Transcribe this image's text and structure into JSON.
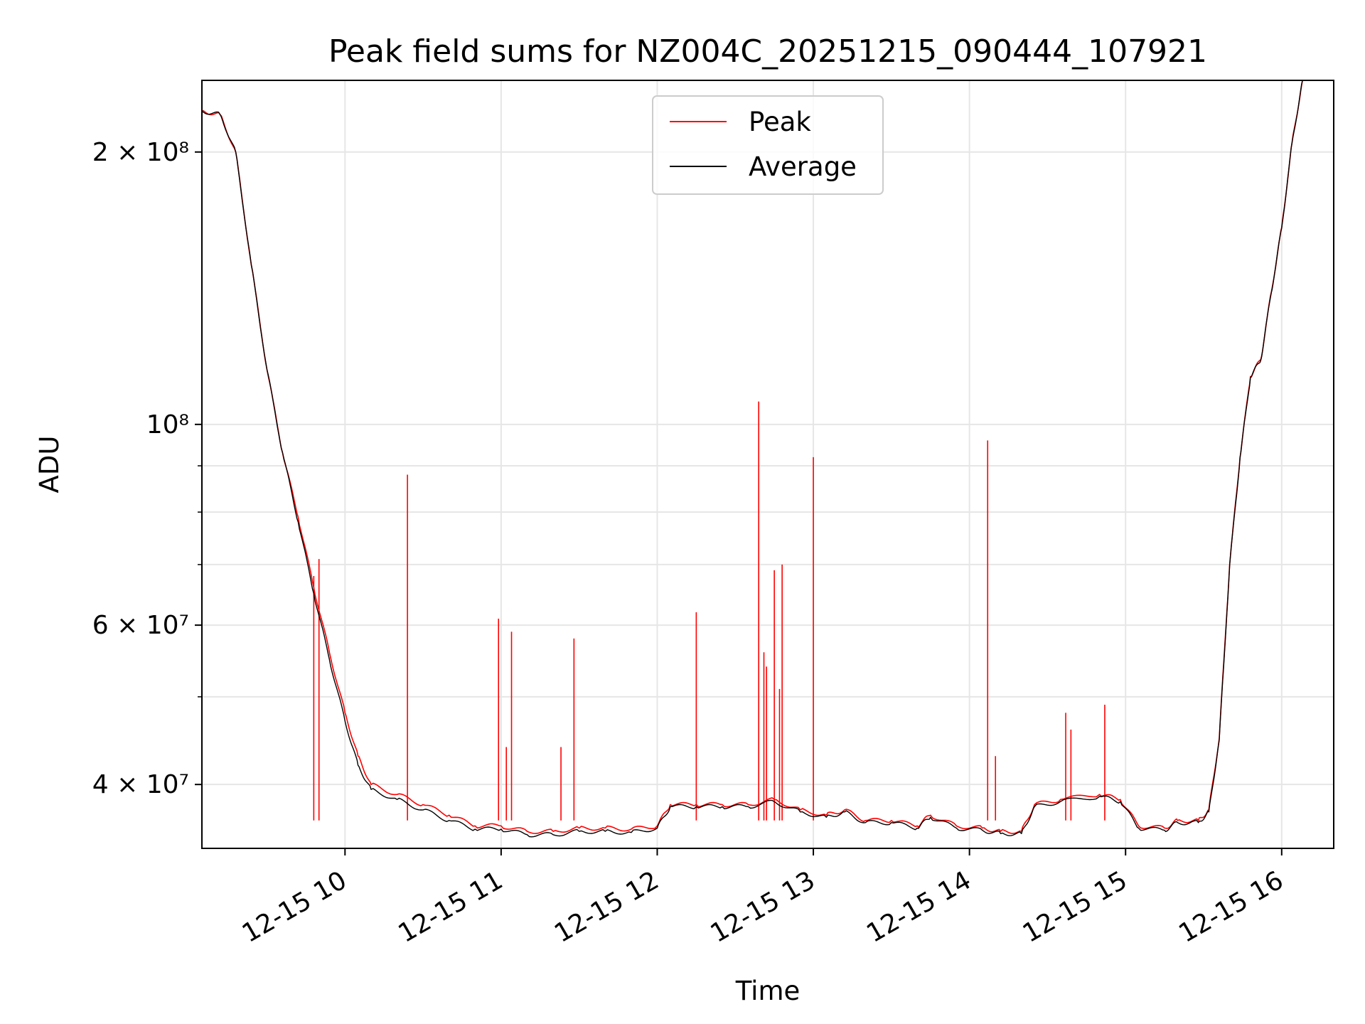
{
  "chart_data": {
    "type": "line",
    "title": "Peak field sums for NZ004C_20251215_090444_107921",
    "xlabel": "Time",
    "ylabel": "ADU",
    "yscale": "log",
    "xlim": [
      "2025-12-15 09:05",
      "2025-12-15 16:20"
    ],
    "ylim": [
      34000000,
      240000000
    ],
    "grid": true,
    "legend_position": "upper center",
    "x_ticks": [
      {
        "value": "2025-12-15 10:00",
        "label": "12-15 10"
      },
      {
        "value": "2025-12-15 11:00",
        "label": "12-15 11"
      },
      {
        "value": "2025-12-15 12:00",
        "label": "12-15 12"
      },
      {
        "value": "2025-12-15 13:00",
        "label": "12-15 13"
      },
      {
        "value": "2025-12-15 14:00",
        "label": "12-15 14"
      },
      {
        "value": "2025-12-15 15:00",
        "label": "12-15 15"
      },
      {
        "value": "2025-12-15 16:00",
        "label": "12-15 16"
      }
    ],
    "y_ticks": [
      {
        "value": 40000000,
        "label": "4 × 10⁷"
      },
      {
        "value": 60000000,
        "label": "6 × 10⁷"
      },
      {
        "value": 100000000,
        "label": "10⁸"
      },
      {
        "value": 200000000,
        "label": "2 × 10⁸"
      }
    ],
    "y_minor_ticks": [
      50000000,
      70000000,
      80000000,
      90000000
    ],
    "series": [
      {
        "name": "Peak",
        "color": "#ff0000",
        "x": [
          "2025-12-15 09:05",
          "2025-12-15 09:12",
          "2025-12-15 09:18",
          "2025-12-15 09:24",
          "2025-12-15 09:30",
          "2025-12-15 09:36",
          "2025-12-15 09:42",
          "2025-12-15 09:48",
          "2025-12-15 09:54",
          "2025-12-15 10:00",
          "2025-12-15 10:05",
          "2025-12-15 10:10",
          "2025-12-15 10:20",
          "2025-12-15 10:30",
          "2025-12-15 10:40",
          "2025-12-15 10:50",
          "2025-12-15 11:00",
          "2025-12-15 11:10",
          "2025-12-15 11:20",
          "2025-12-15 11:30",
          "2025-12-15 11:40",
          "2025-12-15 11:50",
          "2025-12-15 12:00",
          "2025-12-15 12:05",
          "2025-12-15 12:15",
          "2025-12-15 12:25",
          "2025-12-15 12:35",
          "2025-12-15 12:45",
          "2025-12-15 12:55",
          "2025-12-15 13:05",
          "2025-12-15 13:12",
          "2025-12-15 13:20",
          "2025-12-15 13:30",
          "2025-12-15 13:40",
          "2025-12-15 13:45",
          "2025-12-15 13:55",
          "2025-12-15 14:05",
          "2025-12-15 14:12",
          "2025-12-15 14:20",
          "2025-12-15 14:25",
          "2025-12-15 14:35",
          "2025-12-15 14:50",
          "2025-12-15 14:58",
          "2025-12-15 15:05",
          "2025-12-15 15:15",
          "2025-12-15 15:20",
          "2025-12-15 15:28",
          "2025-12-15 15:32",
          "2025-12-15 15:36",
          "2025-12-15 15:40",
          "2025-12-15 15:44",
          "2025-12-15 15:48",
          "2025-12-15 15:52",
          "2025-12-15 15:56",
          "2025-12-15 16:00",
          "2025-12-15 16:04",
          "2025-12-15 16:08"
        ],
        "y": [
          222000000,
          220000000,
          200000000,
          150000000,
          115000000,
          93000000,
          79000000,
          66000000,
          56000000,
          48000000,
          43000000,
          40000000,
          39000000,
          38000000,
          37000000,
          36000000,
          36000000,
          35500000,
          35500000,
          35800000,
          35800000,
          35700000,
          36000000,
          38000000,
          38000000,
          38000000,
          38000000,
          38500000,
          37500000,
          37000000,
          37500000,
          36500000,
          36500000,
          36000000,
          37000000,
          36000000,
          35800000,
          35500000,
          35500000,
          38000000,
          38500000,
          39000000,
          38500000,
          36000000,
          35800000,
          36500000,
          36500000,
          37500000,
          45000000,
          70000000,
          92000000,
          113000000,
          118000000,
          140000000,
          165000000,
          205000000,
          240000000
        ],
        "spikes": [
          {
            "x": "2025-12-15 09:48",
            "y": 68000000
          },
          {
            "x": "2025-12-15 09:50",
            "y": 71000000
          },
          {
            "x": "2025-12-15 10:24",
            "y": 88000000
          },
          {
            "x": "2025-12-15 10:59",
            "y": 61000000
          },
          {
            "x": "2025-12-15 11:02",
            "y": 44000000
          },
          {
            "x": "2025-12-15 11:04",
            "y": 59000000
          },
          {
            "x": "2025-12-15 11:23",
            "y": 44000000
          },
          {
            "x": "2025-12-15 11:28",
            "y": 58000000
          },
          {
            "x": "2025-12-15 12:15",
            "y": 62000000
          },
          {
            "x": "2025-12-15 12:39",
            "y": 106000000
          },
          {
            "x": "2025-12-15 12:41",
            "y": 56000000
          },
          {
            "x": "2025-12-15 12:42",
            "y": 54000000
          },
          {
            "x": "2025-12-15 12:45",
            "y": 69000000
          },
          {
            "x": "2025-12-15 12:47",
            "y": 51000000
          },
          {
            "x": "2025-12-15 12:48",
            "y": 70000000
          },
          {
            "x": "2025-12-15 13:00",
            "y": 92000000
          },
          {
            "x": "2025-12-15 14:07",
            "y": 96000000
          },
          {
            "x": "2025-12-15 14:10",
            "y": 43000000
          },
          {
            "x": "2025-12-15 14:37",
            "y": 48000000
          },
          {
            "x": "2025-12-15 14:39",
            "y": 46000000
          },
          {
            "x": "2025-12-15 14:52",
            "y": 49000000
          }
        ]
      },
      {
        "name": "Average",
        "color": "#000000",
        "x": [
          "2025-12-15 09:05",
          "2025-12-15 09:12",
          "2025-12-15 09:18",
          "2025-12-15 09:24",
          "2025-12-15 09:30",
          "2025-12-15 09:36",
          "2025-12-15 09:42",
          "2025-12-15 09:48",
          "2025-12-15 09:54",
          "2025-12-15 10:00",
          "2025-12-15 10:05",
          "2025-12-15 10:10",
          "2025-12-15 10:20",
          "2025-12-15 10:30",
          "2025-12-15 10:40",
          "2025-12-15 10:50",
          "2025-12-15 11:00",
          "2025-12-15 11:10",
          "2025-12-15 11:20",
          "2025-12-15 11:30",
          "2025-12-15 11:40",
          "2025-12-15 11:50",
          "2025-12-15 12:00",
          "2025-12-15 12:05",
          "2025-12-15 12:15",
          "2025-12-15 12:25",
          "2025-12-15 12:35",
          "2025-12-15 12:45",
          "2025-12-15 12:55",
          "2025-12-15 13:05",
          "2025-12-15 13:12",
          "2025-12-15 13:20",
          "2025-12-15 13:30",
          "2025-12-15 13:40",
          "2025-12-15 13:45",
          "2025-12-15 13:55",
          "2025-12-15 14:05",
          "2025-12-15 14:12",
          "2025-12-15 14:20",
          "2025-12-15 14:25",
          "2025-12-15 14:35",
          "2025-12-15 14:50",
          "2025-12-15 14:58",
          "2025-12-15 15:05",
          "2025-12-15 15:15",
          "2025-12-15 15:20",
          "2025-12-15 15:28",
          "2025-12-15 15:32",
          "2025-12-15 15:36",
          "2025-12-15 15:40",
          "2025-12-15 15:44",
          "2025-12-15 15:48",
          "2025-12-15 15:52",
          "2025-12-15 15:56",
          "2025-12-15 16:00",
          "2025-12-15 16:04",
          "2025-12-15 16:08"
        ],
        "y": [
          222000000,
          220000000,
          200000000,
          150000000,
          115000000,
          93000000,
          78000000,
          65000000,
          55000000,
          47000000,
          42000000,
          39500000,
          38500000,
          37500000,
          36500000,
          35700000,
          35700000,
          35200000,
          35200000,
          35500000,
          35500000,
          35400000,
          35800000,
          37800000,
          37800000,
          37800000,
          37800000,
          38300000,
          37300000,
          36800000,
          37300000,
          36300000,
          36300000,
          35800000,
          36800000,
          35800000,
          35600000,
          35300000,
          35300000,
          37800000,
          38300000,
          38800000,
          38300000,
          35800000,
          35600000,
          36300000,
          36300000,
          37300000,
          44800000,
          69800000,
          91800000,
          112800000,
          117800000,
          139800000,
          164800000,
          204800000,
          240000000
        ]
      }
    ]
  }
}
